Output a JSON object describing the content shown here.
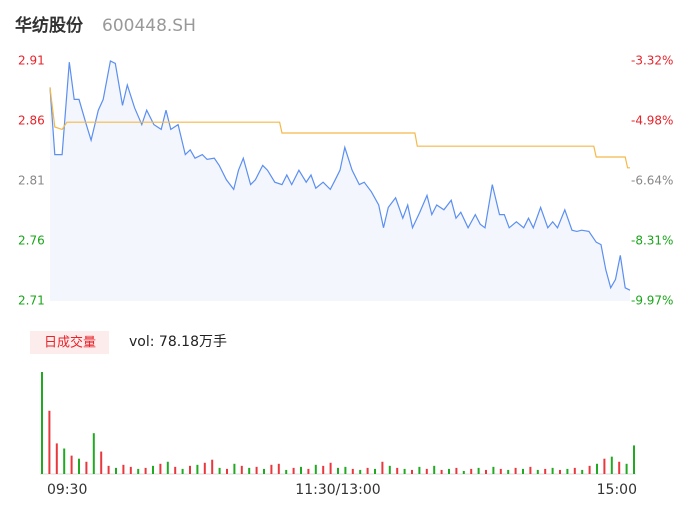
{
  "header": {
    "name": "华纺股份",
    "code": "600448.SH"
  },
  "chart_data": [
    {
      "type": "line",
      "xlim": [
        0,
        240
      ],
      "ylim": [
        2.71,
        2.91
      ],
      "yticks": [
        2.71,
        2.76,
        2.81,
        2.86,
        2.91
      ],
      "ytick_colors": [
        "#1aa51a",
        "#1aa51a",
        "#888888",
        "#e8232a",
        "#e8232a"
      ],
      "y2lim": [
        -9.97,
        -3.32
      ],
      "y2ticks": [
        {
          "value": -9.97,
          "label": "-9.97%"
        },
        {
          "value": -8.31,
          "label": "-8.31%"
        },
        {
          "value": -6.64,
          "label": "-6.64%"
        },
        {
          "value": -4.98,
          "label": "-4.98%"
        },
        {
          "value": -3.32,
          "label": "-3.32%"
        }
      ],
      "y2tick_colors": [
        "#1aa51a",
        "#1aa51a",
        "#888888",
        "#e8232a",
        "#e8232a"
      ],
      "area_color": "#f3f6fc",
      "series": [
        {
          "color": "#5b8ff0",
          "x": [
            0,
            2,
            5,
            8,
            10,
            12,
            15,
            17,
            20,
            22,
            25,
            27,
            30,
            32,
            35,
            38,
            40,
            43,
            46,
            48,
            50,
            53,
            56,
            58,
            60,
            63,
            65,
            68,
            70,
            73,
            76,
            78,
            80,
            83,
            85,
            88,
            90,
            93,
            96,
            98,
            100,
            103,
            106,
            108,
            110,
            113,
            116,
            118,
            120,
            122,
            125,
            128,
            130,
            133,
            136,
            138,
            140,
            143,
            146,
            148,
            150,
            153,
            156,
            158,
            160,
            163,
            166,
            168,
            170,
            173,
            176,
            178,
            180,
            183,
            186,
            188,
            190,
            193,
            196,
            198,
            200,
            203,
            206,
            208,
            210,
            213,
            216,
            218,
            220,
            223,
            226,
            228,
            230,
            232,
            234,
            236,
            238,
            240
          ],
          "values": [
            2.888,
            2.832,
            2.832,
            2.909,
            2.878,
            2.878,
            2.857,
            2.844,
            2.869,
            2.878,
            2.91,
            2.908,
            2.873,
            2.89,
            2.871,
            2.857,
            2.869,
            2.857,
            2.853,
            2.869,
            2.853,
            2.857,
            2.832,
            2.836,
            2.829,
            2.832,
            2.828,
            2.829,
            2.823,
            2.811,
            2.803,
            2.819,
            2.829,
            2.807,
            2.811,
            2.823,
            2.819,
            2.809,
            2.807,
            2.815,
            2.807,
            2.819,
            2.809,
            2.815,
            2.804,
            2.809,
            2.803,
            2.811,
            2.819,
            2.838,
            2.819,
            2.807,
            2.809,
            2.801,
            2.79,
            2.771,
            2.788,
            2.796,
            2.779,
            2.79,
            2.771,
            2.784,
            2.798,
            2.782,
            2.79,
            2.786,
            2.794,
            2.779,
            2.784,
            2.771,
            2.782,
            2.774,
            2.771,
            2.807,
            2.782,
            2.782,
            2.771,
            2.776,
            2.771,
            2.779,
            2.771,
            2.788,
            2.771,
            2.776,
            2.771,
            2.786,
            2.769,
            2.768,
            2.769,
            2.768,
            2.759,
            2.757,
            2.736,
            2.721,
            2.728,
            2.748,
            2.721,
            2.719
          ]
        },
        {
          "color": "#f5b94a",
          "x": [
            0,
            2,
            5,
            7,
            95,
            96,
            151,
            152,
            225,
            226,
            238,
            239,
            240
          ],
          "values": [
            2.888,
            2.855,
            2.853,
            2.859,
            2.859,
            2.85,
            2.85,
            2.839,
            2.839,
            2.83,
            2.83,
            2.821,
            2.821
          ]
        }
      ]
    },
    {
      "type": "bar",
      "label": "日成交量",
      "vol_text": "vol: 78.18万手",
      "xlim": [
        0,
        240
      ],
      "ylim": [
        0,
        100
      ],
      "xticks": [
        {
          "value": 0,
          "label": "09:30"
        },
        {
          "value": 120,
          "label": "11:30/13:00"
        },
        {
          "value": 240,
          "label": "15:00"
        }
      ],
      "x": [
        0,
        3,
        6,
        9,
        12,
        15,
        18,
        21,
        24,
        27,
        30,
        33,
        36,
        39,
        42,
        45,
        48,
        51,
        54,
        57,
        60,
        63,
        66,
        69,
        72,
        75,
        78,
        81,
        84,
        87,
        90,
        93,
        96,
        99,
        102,
        105,
        108,
        111,
        114,
        117,
        120,
        123,
        126,
        129,
        132,
        135,
        138,
        141,
        144,
        147,
        150,
        153,
        156,
        159,
        162,
        165,
        168,
        171,
        174,
        177,
        180,
        183,
        186,
        189,
        192,
        195,
        198,
        201,
        204,
        207,
        210,
        213,
        216,
        219,
        222,
        225,
        228,
        231,
        234,
        237,
        240
      ],
      "series": [
        {
          "color": "#e8383d",
          "values": [
            null,
            62,
            30,
            null,
            18,
            null,
            12,
            null,
            22,
            8,
            null,
            9,
            7,
            null,
            6,
            null,
            10,
            null,
            7,
            null,
            8,
            null,
            11,
            14,
            null,
            5,
            null,
            8,
            null,
            7,
            null,
            9,
            10,
            null,
            6,
            null,
            5,
            null,
            8,
            11,
            null,
            null,
            5,
            null,
            6,
            null,
            12,
            null,
            6,
            null,
            4,
            null,
            5,
            null,
            4,
            null,
            6,
            null,
            5,
            null,
            4,
            null,
            5,
            null,
            6,
            null,
            7,
            null,
            5,
            null,
            4,
            null,
            6,
            null,
            8,
            null,
            15,
            null,
            12,
            null,
            null
          ]
        },
        {
          "color": "#22a822",
          "values": [
            100,
            null,
            null,
            25,
            null,
            15,
            null,
            40,
            null,
            null,
            6,
            null,
            null,
            5,
            null,
            8,
            null,
            12,
            null,
            5,
            null,
            9,
            null,
            null,
            6,
            null,
            10,
            null,
            6,
            null,
            5,
            null,
            null,
            4,
            null,
            7,
            null,
            9,
            null,
            null,
            6,
            7,
            null,
            4,
            null,
            5,
            null,
            8,
            null,
            5,
            null,
            7,
            null,
            8,
            null,
            5,
            null,
            3,
            null,
            6,
            null,
            7,
            null,
            4,
            null,
            5,
            null,
            4,
            null,
            6,
            null,
            5,
            null,
            4,
            null,
            10,
            null,
            17,
            null,
            10,
            28
          ]
        }
      ]
    }
  ]
}
